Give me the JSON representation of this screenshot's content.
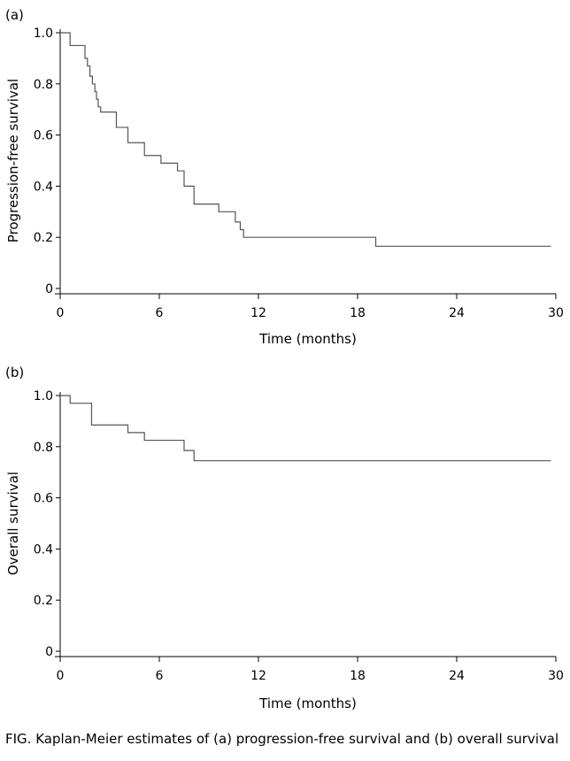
{
  "chart_data": [
    {
      "type": "line",
      "step": true,
      "panel_label": "(a)",
      "xlabel": "Time (months)",
      "ylabel": "Progression-free survival",
      "xlim": [
        0,
        30
      ],
      "ylim": [
        0,
        1
      ],
      "xticks": [
        0,
        6,
        12,
        18,
        24,
        30
      ],
      "yticks": [
        0,
        0.2,
        0.4,
        0.6,
        0.8,
        1.0
      ],
      "ytick_labels": [
        "0",
        "0.2",
        "0.4",
        "0.6",
        "0.8",
        "1.0"
      ],
      "grid": false,
      "series": [
        {
          "x": [
            0,
            0.6,
            1.5,
            1.65,
            1.8,
            1.95,
            2.1,
            2.2,
            2.3,
            2.45,
            2.6,
            3.4,
            4.1,
            5.1,
            6.1,
            7.1,
            7.5,
            8.1,
            9.6,
            10.6,
            10.9,
            11.1,
            19.1,
            29.7
          ],
          "y": [
            1.0,
            0.95,
            0.9,
            0.87,
            0.83,
            0.8,
            0.77,
            0.74,
            0.71,
            0.69,
            0.69,
            0.63,
            0.57,
            0.52,
            0.49,
            0.46,
            0.4,
            0.33,
            0.3,
            0.26,
            0.23,
            0.2,
            0.165,
            0.165
          ]
        }
      ]
    },
    {
      "type": "line",
      "step": true,
      "panel_label": "(b)",
      "xlabel": "Time (months)",
      "ylabel": "Overall survival",
      "xlim": [
        0,
        30
      ],
      "ylim": [
        0,
        1
      ],
      "xticks": [
        0,
        6,
        12,
        18,
        24,
        30
      ],
      "yticks": [
        0,
        0.2,
        0.4,
        0.6,
        0.8,
        1.0
      ],
      "ytick_labels": [
        "0",
        "0.2",
        "0.4",
        "0.6",
        "0.8",
        "1.0"
      ],
      "grid": false,
      "series": [
        {
          "x": [
            0,
            0.6,
            1.9,
            4.1,
            5.1,
            7.5,
            8.1,
            29.7
          ],
          "y": [
            1.0,
            0.97,
            0.885,
            0.855,
            0.825,
            0.785,
            0.745,
            0.745
          ]
        }
      ]
    }
  ],
  "caption": "FIG.  Kaplan-Meier estimates of (a) progression-free survival and (b) overall survival"
}
